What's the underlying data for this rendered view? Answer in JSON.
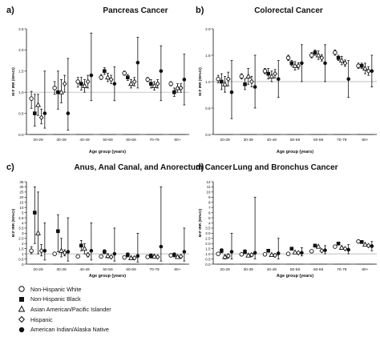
{
  "legend": [
    {
      "label": "Non-Hispanic White",
      "marker": "circle-open"
    },
    {
      "label": "Non-Hispanic Black",
      "marker": "square"
    },
    {
      "label": "Asian American/Pacific Islander",
      "marker": "triangle-open"
    },
    {
      "label": "Hispanic",
      "marker": "diamond-open"
    },
    {
      "label": "American Indian/Alaska Native",
      "marker": "circle-filled"
    }
  ],
  "colors": {
    "ink": "#111111",
    "reference_line": "#aaaaaa"
  },
  "chart_data": [
    {
      "type": "scatter",
      "panel_letter": "a)",
      "title": "Pancreas Cancer",
      "xlabel": "Age group (years)",
      "ylabel": "M:F IRR (95%CI)",
      "categories": [
        "20-29",
        "30-39",
        "40-49",
        "50-59",
        "60-69",
        "70-79",
        "80+"
      ],
      "yscale": "linear",
      "ylim": [
        0,
        2.5
      ],
      "yticks": [
        0.0,
        0.5,
        1.0,
        1.5,
        2.0,
        2.5
      ],
      "reference_line": 1.0,
      "series": [
        {
          "marker": "circle-open",
          "values": [
            [
              0.85,
              0.62,
              1.02
            ],
            [
              1.1,
              0.95,
              1.25
            ],
            [
              1.25,
              1.12,
              1.35
            ],
            [
              1.35,
              1.3,
              1.42
            ],
            [
              1.45,
              1.4,
              1.5
            ],
            [
              1.3,
              1.25,
              1.35
            ],
            [
              1.2,
              1.15,
              1.25
            ]
          ]
        },
        {
          "marker": "square",
          "values": [
            [
              0.5,
              0.2,
              0.95
            ],
            [
              1.0,
              0.6,
              1.5
            ],
            [
              1.2,
              1.05,
              1.35
            ],
            [
              1.5,
              1.42,
              1.58
            ],
            [
              1.35,
              1.28,
              1.42
            ],
            [
              1.2,
              1.1,
              1.3
            ],
            [
              1.0,
              0.9,
              1.1
            ]
          ]
        },
        {
          "marker": "triangle-open",
          "values": [
            [
              0.7,
              0.45,
              0.95
            ],
            [
              1.0,
              0.75,
              1.3
            ],
            [
              1.15,
              1.0,
              1.3
            ],
            [
              1.35,
              1.25,
              1.45
            ],
            [
              1.2,
              1.1,
              1.3
            ],
            [
              1.15,
              1.05,
              1.25
            ],
            [
              1.1,
              1.0,
              1.2
            ]
          ]
        },
        {
          "marker": "diamond-open",
          "values": [
            [
              0.4,
              0.25,
              0.6
            ],
            [
              1.2,
              1.0,
              1.4
            ],
            [
              1.25,
              1.1,
              1.4
            ],
            [
              1.3,
              1.2,
              1.4
            ],
            [
              1.25,
              1.15,
              1.35
            ],
            [
              1.2,
              1.1,
              1.3
            ],
            [
              1.1,
              1.0,
              1.2
            ]
          ]
        },
        {
          "marker": "circle-filled",
          "values": [
            [
              0.5,
              0.15,
              1.5
            ],
            [
              0.5,
              0.1,
              1.8
            ],
            [
              1.4,
              0.8,
              2.4
            ],
            [
              1.2,
              0.8,
              1.6
            ],
            [
              1.7,
              1.1,
              2.3
            ],
            [
              1.5,
              0.8,
              2.1
            ],
            [
              1.3,
              0.7,
              1.9
            ]
          ]
        }
      ]
    },
    {
      "type": "scatter",
      "panel_letter": "b)",
      "title": "Colorectal Cancer",
      "xlabel": "Age group (years)",
      "ylabel": "M:F IRR (95%CI)",
      "categories": [
        "20-29",
        "30-39",
        "40-49",
        "50-59",
        "60-69",
        "70-79",
        "80+"
      ],
      "yscale": "linear",
      "ylim": [
        0,
        2.0
      ],
      "yticks": [
        0.0,
        0.5,
        1.0,
        1.5,
        2.0
      ],
      "reference_line": 1.0,
      "series": [
        {
          "marker": "circle-open",
          "values": [
            [
              1.05,
              0.98,
              1.12
            ],
            [
              1.1,
              1.05,
              1.15
            ],
            [
              1.2,
              1.15,
              1.25
            ],
            [
              1.45,
              1.4,
              1.5
            ],
            [
              1.5,
              1.45,
              1.55
            ],
            [
              1.55,
              1.5,
              1.6
            ],
            [
              1.3,
              1.25,
              1.35
            ]
          ]
        },
        {
          "marker": "square",
          "values": [
            [
              1.0,
              0.85,
              1.15
            ],
            [
              0.95,
              0.85,
              1.05
            ],
            [
              1.15,
              1.05,
              1.25
            ],
            [
              1.35,
              1.3,
              1.4
            ],
            [
              1.55,
              1.5,
              1.6
            ],
            [
              1.45,
              1.4,
              1.5
            ],
            [
              1.3,
              1.25,
              1.35
            ]
          ]
        },
        {
          "marker": "triangle-open",
          "values": [
            [
              0.95,
              0.8,
              1.1
            ],
            [
              1.1,
              0.95,
              1.25
            ],
            [
              1.1,
              1.0,
              1.2
            ],
            [
              1.3,
              1.22,
              1.38
            ],
            [
              1.5,
              1.42,
              1.58
            ],
            [
              1.4,
              1.32,
              1.48
            ],
            [
              1.25,
              1.15,
              1.35
            ]
          ]
        },
        {
          "marker": "diamond-open",
          "values": [
            [
              1.05,
              0.92,
              1.18
            ],
            [
              1.0,
              0.9,
              1.1
            ],
            [
              1.15,
              1.07,
              1.23
            ],
            [
              1.3,
              1.24,
              1.36
            ],
            [
              1.45,
              1.39,
              1.51
            ],
            [
              1.35,
              1.29,
              1.41
            ],
            [
              1.2,
              1.12,
              1.28
            ]
          ]
        },
        {
          "marker": "circle-filled",
          "values": [
            [
              0.8,
              0.3,
              1.4
            ],
            [
              0.9,
              0.5,
              1.5
            ],
            [
              1.05,
              0.7,
              1.4
            ],
            [
              1.35,
              1.0,
              1.7
            ],
            [
              1.35,
              1.0,
              1.7
            ],
            [
              1.05,
              0.7,
              1.4
            ],
            [
              1.2,
              0.9,
              1.5
            ]
          ]
        }
      ]
    },
    {
      "type": "scatter",
      "panel_letter": "c)",
      "title": "Anus, Anal Canal, and Anorectum Cancer",
      "xlabel": "Age group (years)",
      "ylabel": "M:F IRR (95%CI)",
      "categories": [
        "20-29",
        "30-39",
        "40-49",
        "50-59",
        "60-69",
        "70-79",
        "80+"
      ],
      "yscale": "piecewise",
      "ylim": [
        0,
        35
      ],
      "yticks": [
        0,
        0.5,
        1,
        1.5,
        2,
        2.5,
        3,
        3.5,
        4,
        4.5,
        5,
        10,
        15,
        20,
        25,
        30,
        35
      ],
      "reference_line": 1.0,
      "series": [
        {
          "marker": "circle-open",
          "values": [
            [
              1.3,
              1.0,
              1.7
            ],
            [
              1.0,
              0.85,
              1.15
            ],
            [
              0.75,
              0.7,
              0.8
            ],
            [
              0.75,
              0.7,
              0.8
            ],
            [
              0.65,
              0.6,
              0.7
            ],
            [
              0.7,
              0.65,
              0.75
            ],
            [
              0.85,
              0.8,
              0.9
            ]
          ]
        },
        {
          "marker": "square",
          "values": [
            [
              5,
              2.0,
              30
            ],
            [
              3.2,
              1.2,
              4.8
            ],
            [
              1.8,
              1.3,
              2.3
            ],
            [
              1.2,
              1.0,
              1.4
            ],
            [
              0.9,
              0.7,
              1.1
            ],
            [
              0.8,
              0.6,
              1.0
            ],
            [
              0.9,
              0.7,
              1.1
            ]
          ]
        },
        {
          "marker": "triangle-open",
          "values": [
            [
              3.0,
              1.0,
              25
            ],
            [
              1.3,
              0.7,
              2.5
            ],
            [
              1.5,
              1.0,
              2.0
            ],
            [
              0.8,
              0.6,
              1.0
            ],
            [
              0.6,
              0.5,
              0.7
            ],
            [
              0.75,
              0.6,
              0.9
            ],
            [
              0.7,
              0.55,
              0.85
            ]
          ]
        },
        {
          "marker": "diamond-open",
          "values": [
            [
              1.3,
              0.8,
              1.9
            ],
            [
              1.1,
              0.8,
              1.4
            ],
            [
              0.9,
              0.7,
              1.1
            ],
            [
              0.7,
              0.6,
              0.8
            ],
            [
              0.6,
              0.5,
              0.7
            ],
            [
              0.7,
              0.6,
              0.8
            ],
            [
              0.75,
              0.6,
              0.9
            ]
          ]
        },
        {
          "marker": "circle-filled",
          "values": [
            [
              1.3,
              0.4,
              4.0
            ],
            [
              1.2,
              0.3,
              4.5
            ],
            [
              1.3,
              0.4,
              4.0
            ],
            [
              1.0,
              0.3,
              3.5
            ],
            [
              0.8,
              0.2,
              3.0
            ],
            [
              1.7,
              0.3,
              30
            ],
            [
              1.2,
              0.3,
              3.5
            ]
          ]
        }
      ]
    },
    {
      "type": "scatter",
      "panel_letter": "d)",
      "title": "Lung and Bronchus Cancer",
      "xlabel": "Age group (years)",
      "ylabel": "M:F IRR (95%CI)",
      "categories": [
        "20-29",
        "30-39",
        "40-49",
        "50-59",
        "60-69",
        "70-79",
        "80+"
      ],
      "yscale": "piecewise",
      "ylim": [
        0,
        12
      ],
      "yticks": [
        0.0,
        0.5,
        1.0,
        1.5,
        2.0,
        2.5,
        3.0,
        3.5,
        4,
        5,
        6,
        7,
        8,
        9,
        10,
        11,
        12
      ],
      "reference_line": 1.0,
      "series": [
        {
          "marker": "circle-open",
          "values": [
            [
              1.0,
              0.9,
              1.1
            ],
            [
              0.95,
              0.88,
              1.02
            ],
            [
              0.95,
              0.9,
              1.0
            ],
            [
              1.0,
              0.95,
              1.05
            ],
            [
              1.25,
              1.2,
              1.3
            ],
            [
              1.7,
              1.65,
              1.75
            ],
            [
              2.2,
              2.1,
              2.3
            ]
          ]
        },
        {
          "marker": "square",
          "values": [
            [
              1.3,
              1.1,
              1.5
            ],
            [
              1.2,
              1.0,
              1.4
            ],
            [
              1.3,
              1.2,
              1.4
            ],
            [
              1.5,
              1.45,
              1.55
            ],
            [
              1.8,
              1.75,
              1.85
            ],
            [
              2.0,
              1.95,
              2.05
            ],
            [
              2.15,
              2.05,
              2.25
            ]
          ]
        },
        {
          "marker": "triangle-open",
          "values": [
            [
              0.7,
              0.5,
              0.9
            ],
            [
              0.85,
              0.7,
              1.0
            ],
            [
              0.9,
              0.8,
              1.0
            ],
            [
              1.15,
              1.08,
              1.22
            ],
            [
              1.7,
              1.62,
              1.78
            ],
            [
              1.6,
              1.5,
              1.7
            ],
            [
              1.9,
              1.8,
              2.0
            ]
          ]
        },
        {
          "marker": "diamond-open",
          "values": [
            [
              0.8,
              0.6,
              1.0
            ],
            [
              0.9,
              0.75,
              1.05
            ],
            [
              0.85,
              0.75,
              0.95
            ],
            [
              1.1,
              1.03,
              1.17
            ],
            [
              1.3,
              1.24,
              1.36
            ],
            [
              1.5,
              1.42,
              1.58
            ],
            [
              1.8,
              1.7,
              1.9
            ]
          ]
        },
        {
          "marker": "circle-filled",
          "values": [
            [
              1.2,
              0.5,
              3.0
            ],
            [
              1.1,
              0.5,
              9.0
            ],
            [
              1.05,
              0.5,
              2.5
            ],
            [
              1.1,
              0.8,
              1.6
            ],
            [
              1.35,
              1.0,
              1.8
            ],
            [
              1.4,
              1.0,
              1.9
            ],
            [
              1.75,
              1.3,
              2.2
            ]
          ]
        }
      ]
    }
  ]
}
